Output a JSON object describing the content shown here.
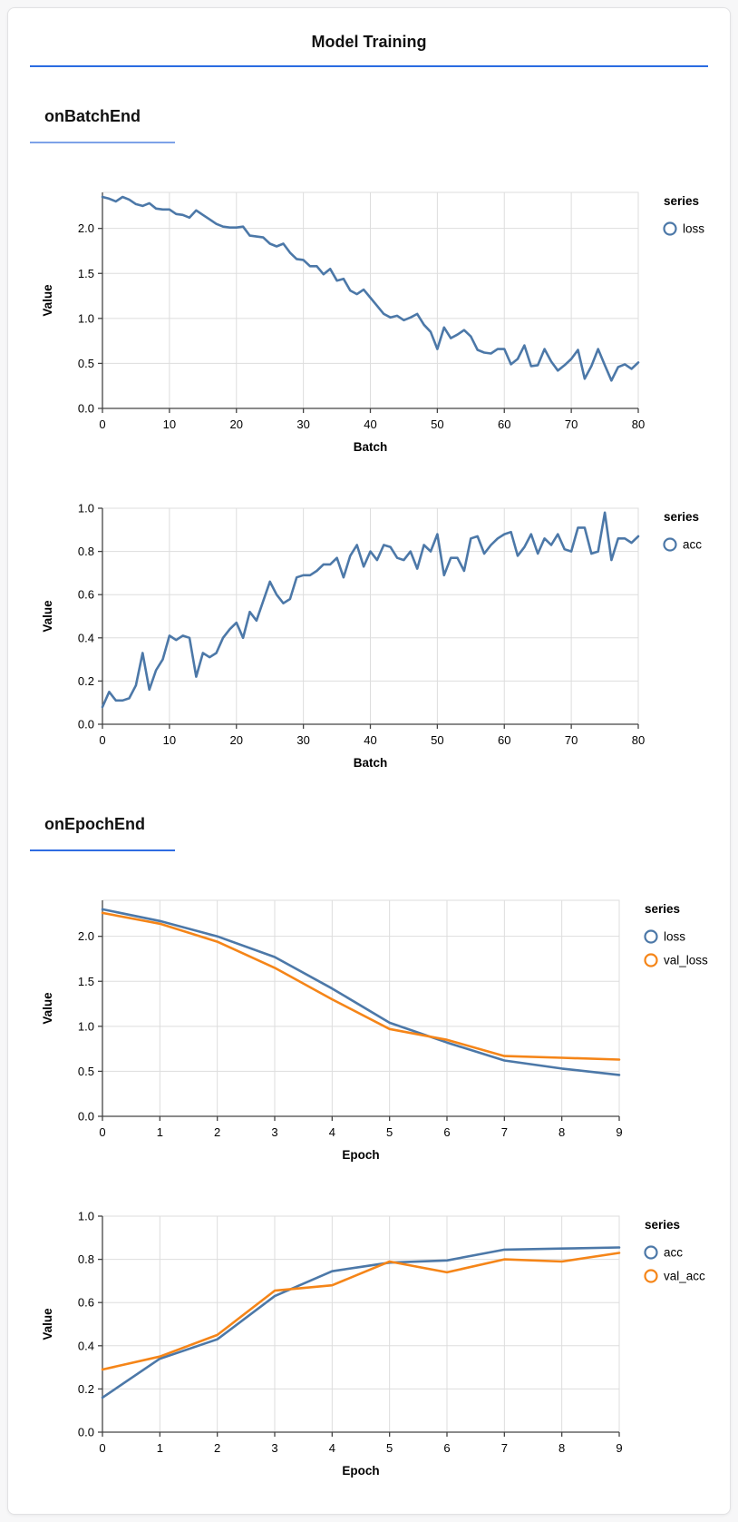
{
  "header": {
    "title": "Model Training"
  },
  "colors": {
    "title_rule": "#2b6ce2",
    "section_rule_light": "#7da2e8",
    "section_rule_dark": "#2f6ce2",
    "series_blue": "#4c78a8",
    "series_orange": "#f58518",
    "gridline": "#dddddd",
    "axis_domain": "#444444"
  },
  "sections": [
    {
      "heading": "onBatchEnd",
      "chart_indexes": [
        0,
        1
      ]
    },
    {
      "heading": "onEpochEnd",
      "chart_indexes": [
        2,
        3
      ]
    }
  ],
  "chart_data": [
    {
      "type": "line",
      "xlabel": "Batch",
      "ylabel": "Value",
      "legend_title": "series",
      "legend_position": "top-right",
      "grid": true,
      "x_start": 0,
      "x_step": 1,
      "xlim": [
        0,
        80
      ],
      "ylim": [
        0,
        2.4
      ],
      "xticks": [
        "0",
        "10",
        "20",
        "30",
        "40",
        "50",
        "60",
        "70",
        "80"
      ],
      "xtick_values": [
        0,
        10,
        20,
        30,
        40,
        50,
        60,
        70,
        80
      ],
      "yticks": [
        "0.0",
        "0.5",
        "1.0",
        "1.5",
        "2.0"
      ],
      "ytick_values": [
        0,
        0.5,
        1.0,
        1.5,
        2.0
      ],
      "series": [
        {
          "name": "loss",
          "color": "#4c78a8",
          "values": [
            2.35,
            2.33,
            2.3,
            2.35,
            2.32,
            2.27,
            2.25,
            2.28,
            2.22,
            2.21,
            2.21,
            2.16,
            2.15,
            2.12,
            2.2,
            2.15,
            2.1,
            2.05,
            2.02,
            2.01,
            2.01,
            2.02,
            1.92,
            1.91,
            1.9,
            1.83,
            1.8,
            1.83,
            1.73,
            1.66,
            1.65,
            1.58,
            1.58,
            1.49,
            1.55,
            1.42,
            1.44,
            1.31,
            1.27,
            1.32,
            1.23,
            1.14,
            1.05,
            1.01,
            1.03,
            0.98,
            1.01,
            1.05,
            0.93,
            0.85,
            0.66,
            0.9,
            0.78,
            0.82,
            0.87,
            0.8,
            0.65,
            0.62,
            0.61,
            0.66,
            0.66,
            0.49,
            0.55,
            0.7,
            0.47,
            0.48,
            0.66,
            0.52,
            0.42,
            0.48,
            0.55,
            0.65,
            0.33,
            0.47,
            0.66,
            0.48,
            0.31,
            0.46,
            0.49,
            0.44,
            0.51
          ]
        }
      ]
    },
    {
      "type": "line",
      "xlabel": "Batch",
      "ylabel": "Value",
      "legend_title": "series",
      "legend_position": "top-right",
      "grid": true,
      "x_start": 0,
      "x_step": 1,
      "xlim": [
        0,
        80
      ],
      "ylim": [
        0,
        1.0
      ],
      "xticks": [
        "0",
        "10",
        "20",
        "30",
        "40",
        "50",
        "60",
        "70",
        "80"
      ],
      "xtick_values": [
        0,
        10,
        20,
        30,
        40,
        50,
        60,
        70,
        80
      ],
      "yticks": [
        "0.0",
        "0.2",
        "0.4",
        "0.6",
        "0.8",
        "1.0"
      ],
      "ytick_values": [
        0,
        0.2,
        0.4,
        0.6,
        0.8,
        1.0
      ],
      "series": [
        {
          "name": "acc",
          "color": "#4c78a8",
          "values": [
            0.08,
            0.15,
            0.11,
            0.11,
            0.12,
            0.18,
            0.33,
            0.16,
            0.25,
            0.3,
            0.41,
            0.39,
            0.41,
            0.4,
            0.22,
            0.33,
            0.31,
            0.33,
            0.4,
            0.44,
            0.47,
            0.4,
            0.52,
            0.48,
            0.57,
            0.66,
            0.6,
            0.56,
            0.58,
            0.68,
            0.69,
            0.69,
            0.71,
            0.74,
            0.74,
            0.77,
            0.68,
            0.78,
            0.83,
            0.73,
            0.8,
            0.76,
            0.83,
            0.82,
            0.77,
            0.76,
            0.8,
            0.72,
            0.83,
            0.8,
            0.88,
            0.69,
            0.77,
            0.77,
            0.71,
            0.86,
            0.87,
            0.79,
            0.83,
            0.86,
            0.88,
            0.89,
            0.78,
            0.82,
            0.88,
            0.79,
            0.86,
            0.83,
            0.88,
            0.81,
            0.8,
            0.91,
            0.91,
            0.79,
            0.8,
            0.98,
            0.76,
            0.86,
            0.86,
            0.84,
            0.87
          ]
        }
      ]
    },
    {
      "type": "line",
      "xlabel": "Epoch",
      "ylabel": "Value",
      "legend_title": "series",
      "legend_position": "top-right",
      "grid": true,
      "x_start": 0,
      "x_step": 1,
      "xlim": [
        0,
        9
      ],
      "ylim": [
        0,
        2.4
      ],
      "xticks": [
        "0",
        "1",
        "2",
        "3",
        "4",
        "5",
        "6",
        "7",
        "8",
        "9"
      ],
      "xtick_values": [
        0,
        1,
        2,
        3,
        4,
        5,
        6,
        7,
        8,
        9
      ],
      "yticks": [
        "0.0",
        "0.5",
        "1.0",
        "1.5",
        "2.0"
      ],
      "ytick_values": [
        0,
        0.5,
        1.0,
        1.5,
        2.0
      ],
      "series": [
        {
          "name": "loss",
          "color": "#4c78a8",
          "values": [
            2.3,
            2.17,
            2.0,
            1.77,
            1.42,
            1.04,
            0.82,
            0.62,
            0.53,
            0.46
          ]
        },
        {
          "name": "val_loss",
          "color": "#f58518",
          "values": [
            2.26,
            2.14,
            1.94,
            1.65,
            1.3,
            0.97,
            0.85,
            0.67,
            0.65,
            0.63
          ]
        }
      ]
    },
    {
      "type": "line",
      "xlabel": "Epoch",
      "ylabel": "Value",
      "legend_title": "series",
      "legend_position": "top-right",
      "grid": true,
      "x_start": 0,
      "x_step": 1,
      "xlim": [
        0,
        9
      ],
      "ylim": [
        0,
        1.0
      ],
      "xticks": [
        "0",
        "1",
        "2",
        "3",
        "4",
        "5",
        "6",
        "7",
        "8",
        "9"
      ],
      "xtick_values": [
        0,
        1,
        2,
        3,
        4,
        5,
        6,
        7,
        8,
        9
      ],
      "yticks": [
        "0.0",
        "0.2",
        "0.4",
        "0.6",
        "0.8",
        "1.0"
      ],
      "ytick_values": [
        0,
        0.2,
        0.4,
        0.6,
        0.8,
        1.0
      ],
      "series": [
        {
          "name": "acc",
          "color": "#4c78a8",
          "values": [
            0.16,
            0.34,
            0.43,
            0.63,
            0.745,
            0.785,
            0.795,
            0.845,
            0.85,
            0.855
          ]
        },
        {
          "name": "val_acc",
          "color": "#f58518",
          "values": [
            0.29,
            0.35,
            0.45,
            0.655,
            0.68,
            0.79,
            0.74,
            0.8,
            0.79,
            0.83
          ]
        }
      ]
    }
  ]
}
